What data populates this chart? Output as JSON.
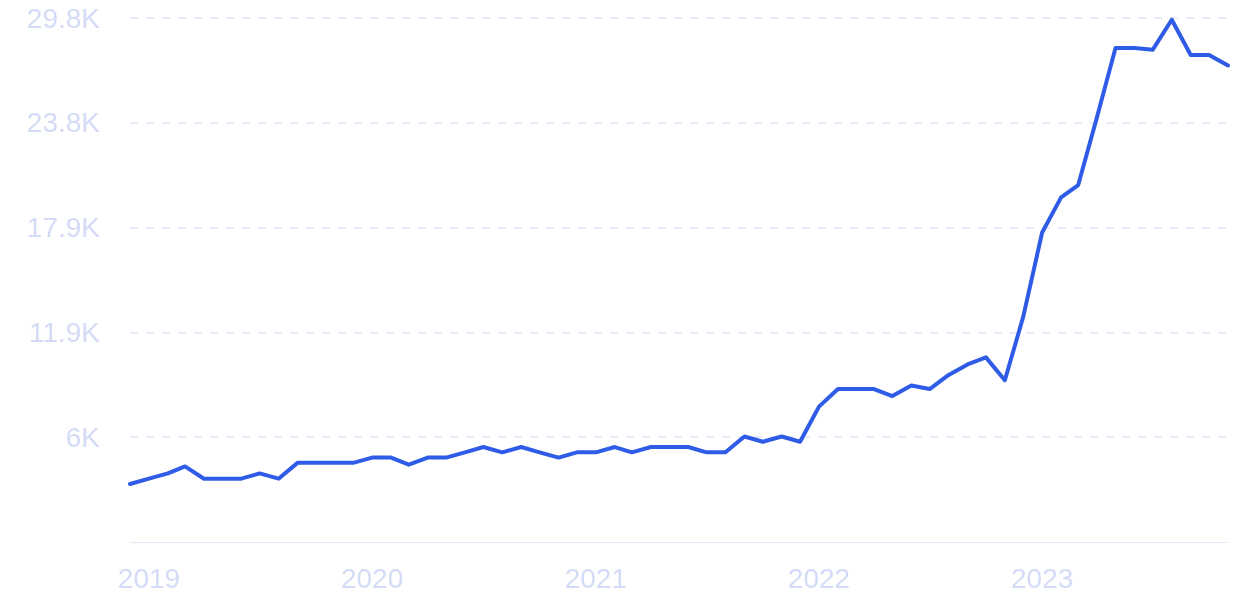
{
  "chart_data": {
    "type": "line",
    "x": [
      "2018-12",
      "2019-01",
      "2019-02",
      "2019-03",
      "2019-04",
      "2019-05",
      "2019-06",
      "2019-07",
      "2019-08",
      "2019-09",
      "2019-10",
      "2019-11",
      "2019-12",
      "2020-01",
      "2020-02",
      "2020-03",
      "2020-04",
      "2020-05",
      "2020-06",
      "2020-07",
      "2020-08",
      "2020-09",
      "2020-10",
      "2020-11",
      "2020-12",
      "2021-01",
      "2021-02",
      "2021-03",
      "2021-04",
      "2021-05",
      "2021-06",
      "2021-07",
      "2021-08",
      "2021-09",
      "2021-10",
      "2021-11",
      "2021-12",
      "2022-01",
      "2022-02",
      "2022-03",
      "2022-04",
      "2022-05",
      "2022-06",
      "2022-07",
      "2022-08",
      "2022-09",
      "2022-10",
      "2022-11",
      "2022-12",
      "2023-01",
      "2023-02",
      "2023-03",
      "2023-04",
      "2023-05",
      "2023-06",
      "2023-07",
      "2023-08",
      "2023-09",
      "2023-10",
      "2023-11"
    ],
    "series": [
      {
        "color": "#2f5ce6",
        "values": [
          3300,
          3600,
          3900,
          4300,
          3600,
          3600,
          3600,
          3900,
          3600,
          4500,
          4500,
          4500,
          4500,
          4800,
          4800,
          4400,
          4800,
          4800,
          5100,
          5400,
          5100,
          5400,
          5100,
          4800,
          5100,
          5100,
          5400,
          5100,
          5400,
          5400,
          5400,
          5100,
          5100,
          6000,
          5700,
          6000,
          5700,
          7700,
          8700,
          8700,
          8700,
          8300,
          8900,
          8700,
          9500,
          10100,
          10500,
          9200,
          12800,
          17600,
          19600,
          20300,
          24200,
          28100,
          28100,
          28000,
          29700,
          27700,
          27700,
          27100
        ]
      }
    ],
    "xlim": [
      "2018-12",
      "2023-11"
    ],
    "xticks": [
      "2019",
      "2020",
      "2021",
      "2022",
      "2023"
    ],
    "ylim": [
      0,
      29800
    ],
    "yticks": [
      {
        "value": 5960,
        "label": "6K"
      },
      {
        "value": 11920,
        "label": "11.9K"
      },
      {
        "value": 17880,
        "label": "17.9K"
      },
      {
        "value": 23840,
        "label": "23.8K"
      },
      {
        "value": 29800,
        "label": "29.8K"
      }
    ],
    "grid": "y",
    "marker": "none",
    "line_style": "solid"
  }
}
